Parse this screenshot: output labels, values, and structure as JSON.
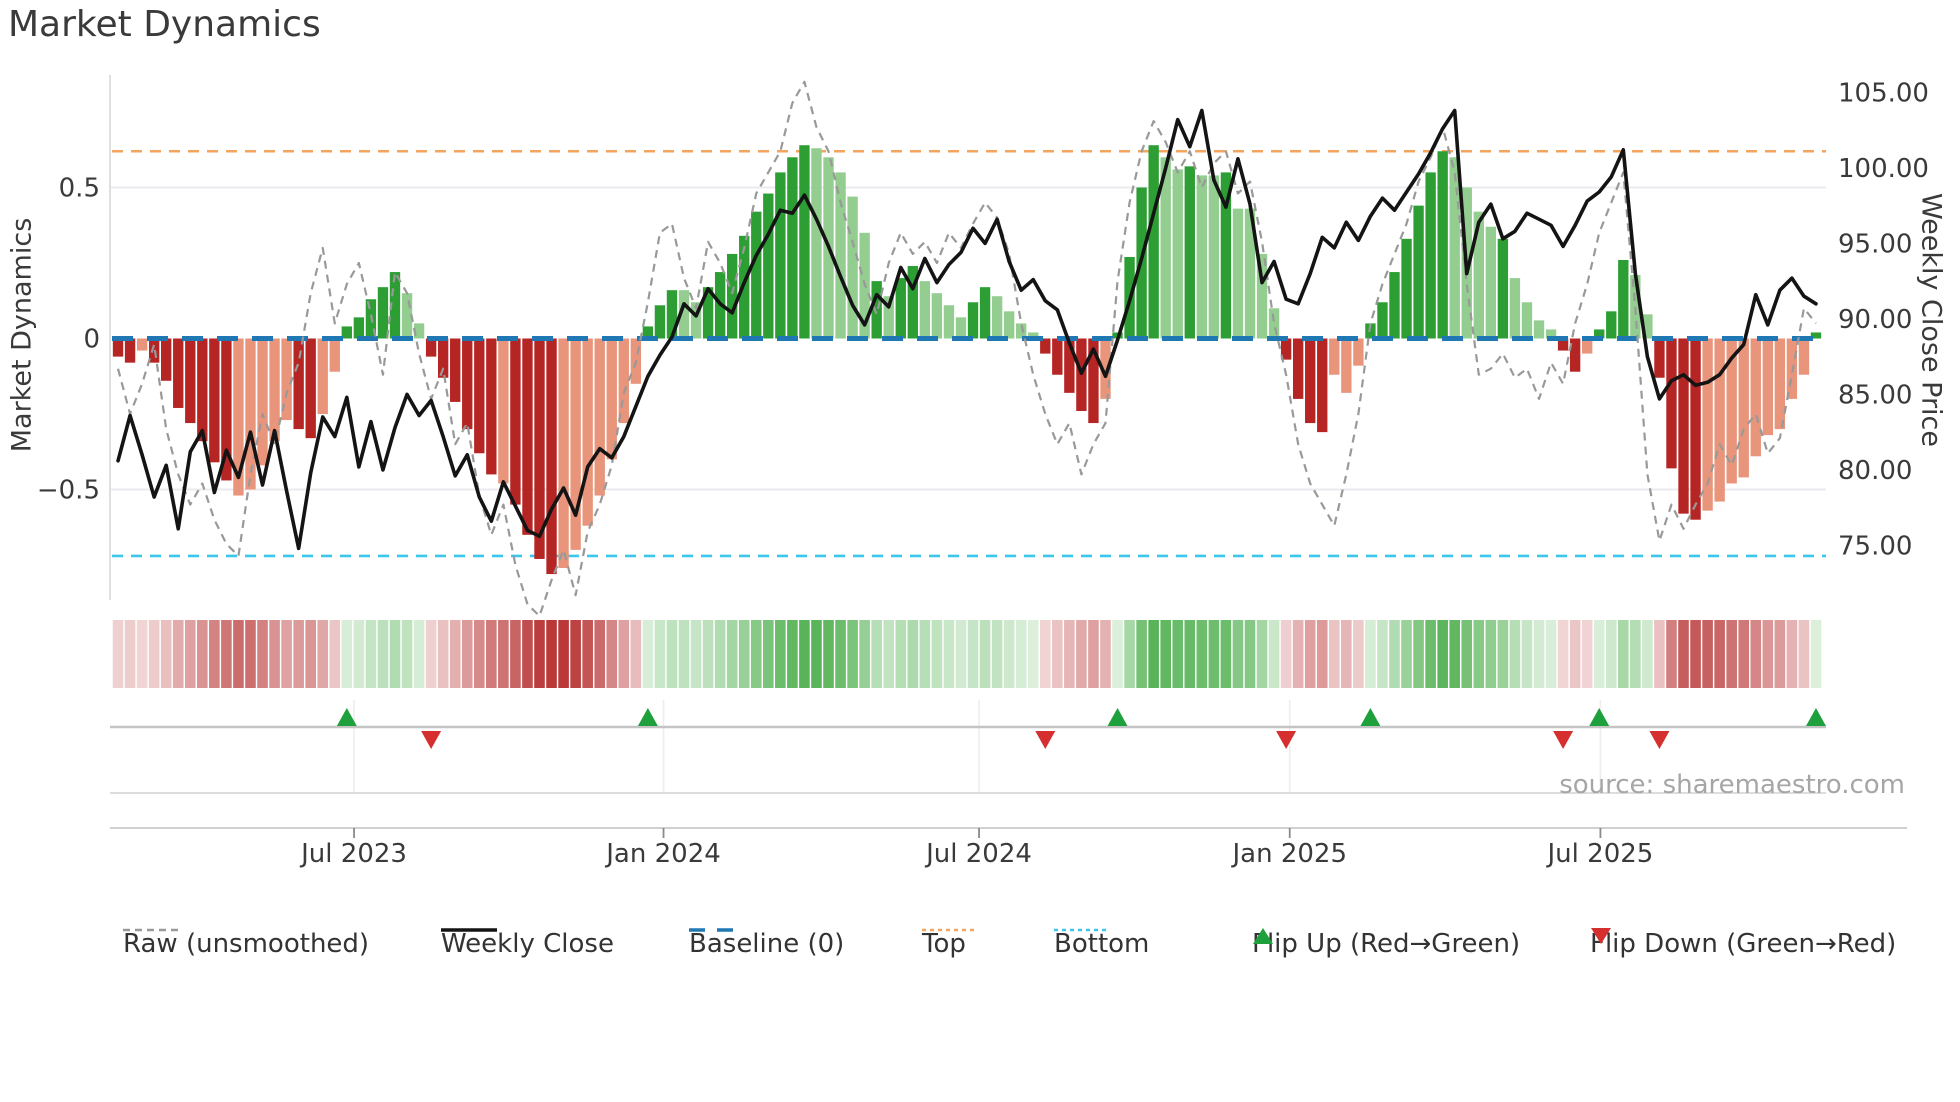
{
  "title": "Market Dynamics",
  "source_text": "source: sharemaestro.com",
  "left_axis": {
    "label": "Market Dynamics",
    "tick_labels": [
      "0.5",
      "0",
      "−0.5"
    ],
    "tick_values": [
      0.5,
      0,
      -0.5
    ]
  },
  "right_axis": {
    "label": "Weekly Close Price",
    "tick_labels": [
      "105.00",
      "100.00",
      "95.00",
      "90.00",
      "85.00",
      "80.00",
      "75.00"
    ],
    "tick_values": [
      105,
      100,
      95,
      90,
      85,
      80,
      75
    ]
  },
  "legend": {
    "items": [
      {
        "label": "Raw (unsmoothed)",
        "sample": "dashed-gray-line"
      },
      {
        "label": "Weekly Close",
        "sample": "solid-black-line"
      },
      {
        "label": "Baseline (0)",
        "sample": "dashed-blue-line"
      },
      {
        "label": "Top",
        "sample": "dotted-orange-line"
      },
      {
        "label": "Bottom",
        "sample": "dotted-cyan-line"
      },
      {
        "label": "Flip Up (Red→Green)",
        "sample": "up-triangle"
      },
      {
        "label": "Flip Down (Green→Red)",
        "sample": "down-triangle"
      }
    ]
  },
  "palette": {
    "bar_strong_red": "#b52524",
    "bar_soft_red": "#e8957b",
    "bar_strong_green": "#2d9e34",
    "bar_soft_green": "#93cd90",
    "heat_red": "#b22222",
    "heat_green": "#2ca02c",
    "weekly_close": "#141414",
    "raw_line": "#999999",
    "baseline": "#1f77b4",
    "top_line": "#f4a55c",
    "bottom_line": "#3cc6ea",
    "flip_up": "#1ea03c",
    "flip_down": "#d62f2f",
    "grid": "#ebebef",
    "axis_text": "#3a3a3a",
    "spine": "#c9c9c9"
  },
  "chart_data": {
    "type": "bar",
    "subtype": "oscillator-bars + weekly-close-line + raw-dashed-line",
    "title": "Market Dynamics",
    "xlabel": "",
    "ylabel": "Market Dynamics",
    "ylabel_right": "Weekly Close Price",
    "x_tick_labels": [
      "Jul 2023",
      "Jan 2024",
      "Jul 2024",
      "Jan 2025",
      "Jul 2025"
    ],
    "x_tick_weeks": [
      20.1,
      45.8,
      72.0,
      97.8,
      123.6
    ],
    "n_weeks": 142,
    "osc_ylim": [
      -0.95,
      0.87
    ],
    "price_ylim": [
      73.5,
      105.5
    ],
    "baseline_value": 0,
    "top_value": 0.62,
    "bottom_value": -0.72,
    "grid_osc_values": [
      0.5,
      -0.5
    ],
    "legend_position": "bottom",
    "series": [
      {
        "name": "Oscillator (smoothed bars)",
        "type": "bar",
        "values": [
          -0.06,
          -0.08,
          -0.04,
          -0.08,
          -0.14,
          -0.23,
          -0.28,
          -0.34,
          -0.41,
          -0.47,
          -0.52,
          -0.5,
          -0.42,
          -0.34,
          -0.27,
          -0.3,
          -0.33,
          -0.25,
          -0.11,
          0.04,
          0.07,
          0.13,
          0.17,
          0.22,
          0.15,
          0.05,
          -0.06,
          -0.13,
          -0.21,
          -0.3,
          -0.38,
          -0.45,
          -0.48,
          -0.55,
          -0.65,
          -0.73,
          -0.78,
          -0.76,
          -0.7,
          -0.62,
          -0.52,
          -0.4,
          -0.28,
          -0.15,
          0.04,
          0.11,
          0.16,
          0.16,
          0.12,
          0.17,
          0.22,
          0.28,
          0.34,
          0.42,
          0.48,
          0.55,
          0.6,
          0.64,
          0.63,
          0.6,
          0.55,
          0.47,
          0.35,
          0.19,
          0.14,
          0.2,
          0.24,
          0.19,
          0.15,
          0.11,
          0.07,
          0.12,
          0.17,
          0.14,
          0.09,
          0.05,
          0.02,
          -0.05,
          -0.12,
          -0.18,
          -0.24,
          -0.28,
          -0.2,
          0.02,
          0.27,
          0.5,
          0.64,
          0.6,
          0.56,
          0.57,
          0.54,
          0.54,
          0.55,
          0.43,
          0.43,
          0.28,
          0.1,
          -0.07,
          -0.2,
          -0.28,
          -0.31,
          -0.12,
          -0.18,
          -0.09,
          0.05,
          0.12,
          0.22,
          0.33,
          0.44,
          0.55,
          0.62,
          0.6,
          0.5,
          0.42,
          0.37,
          0.33,
          0.2,
          0.12,
          0.06,
          0.03,
          -0.04,
          -0.11,
          -0.05,
          0.03,
          0.09,
          0.26,
          0.21,
          0.08,
          -0.13,
          -0.43,
          -0.58,
          -0.6,
          -0.57,
          -0.54,
          -0.48,
          -0.46,
          -0.39,
          -0.32,
          -0.3,
          -0.2,
          -0.12,
          0.02
        ],
        "color_tokens": [
          "R",
          "R",
          "r",
          "R",
          "R",
          "R",
          "R",
          "R",
          "R",
          "R",
          "r",
          "r",
          "r",
          "r",
          "r",
          "R",
          "R",
          "r",
          "r",
          "G",
          "G",
          "G",
          "G",
          "G",
          "g",
          "g",
          "R",
          "R",
          "R",
          "R",
          "R",
          "R",
          "r",
          "R",
          "R",
          "R",
          "R",
          "r",
          "r",
          "r",
          "r",
          "r",
          "r",
          "r",
          "G",
          "G",
          "G",
          "g",
          "g",
          "G",
          "G",
          "G",
          "G",
          "G",
          "G",
          "G",
          "G",
          "G",
          "g",
          "g",
          "g",
          "g",
          "g",
          "G",
          "g",
          "G",
          "G",
          "g",
          "g",
          "g",
          "g",
          "G",
          "G",
          "g",
          "g",
          "g",
          "g",
          "R",
          "R",
          "R",
          "R",
          "R",
          "r",
          "G",
          "G",
          "G",
          "G",
          "g",
          "g",
          "G",
          "g",
          "g",
          "G",
          "g",
          "g",
          "g",
          "g",
          "R",
          "R",
          "R",
          "R",
          "r",
          "r",
          "r",
          "G",
          "G",
          "G",
          "G",
          "G",
          "G",
          "G",
          "g",
          "g",
          "g",
          "g",
          "G",
          "g",
          "g",
          "g",
          "g",
          "R",
          "R",
          "r",
          "G",
          "G",
          "G",
          "g",
          "g",
          "R",
          "R",
          "R",
          "R",
          "r",
          "r",
          "r",
          "r",
          "r",
          "r",
          "r",
          "r",
          "r",
          "G"
        ]
      },
      {
        "name": "Raw (unsmoothed)",
        "type": "line",
        "values": [
          -0.1,
          -0.25,
          -0.15,
          -0.02,
          -0.3,
          -0.45,
          -0.55,
          -0.48,
          -0.6,
          -0.68,
          -0.72,
          -0.45,
          -0.25,
          -0.35,
          -0.18,
          -0.08,
          0.15,
          0.3,
          0.05,
          0.18,
          0.25,
          0.08,
          -0.12,
          0.22,
          0.15,
          -0.05,
          -0.2,
          -0.1,
          -0.35,
          -0.28,
          -0.52,
          -0.65,
          -0.55,
          -0.75,
          -0.88,
          -0.92,
          -0.8,
          -0.7,
          -0.85,
          -0.64,
          -0.55,
          -0.42,
          -0.18,
          -0.08,
          0.12,
          0.35,
          0.38,
          0.2,
          0.1,
          0.32,
          0.25,
          0.15,
          0.3,
          0.48,
          0.55,
          0.62,
          0.78,
          0.85,
          0.7,
          0.62,
          0.45,
          0.32,
          0.18,
          0.08,
          0.25,
          0.35,
          0.28,
          0.32,
          0.25,
          0.35,
          0.3,
          0.38,
          0.45,
          0.4,
          0.28,
          0.05,
          -0.12,
          -0.25,
          -0.35,
          -0.28,
          -0.45,
          -0.35,
          -0.28,
          0.19,
          0.45,
          0.62,
          0.72,
          0.65,
          0.55,
          0.62,
          0.5,
          0.58,
          0.62,
          0.48,
          0.52,
          0.32,
          0.05,
          -0.12,
          -0.35,
          -0.48,
          -0.55,
          -0.62,
          -0.45,
          -0.25,
          0.05,
          0.18,
          0.28,
          0.38,
          0.52,
          0.6,
          0.7,
          0.55,
          0.18,
          -0.12,
          -0.1,
          -0.05,
          -0.13,
          -0.1,
          -0.2,
          -0.08,
          -0.15,
          0.05,
          0.18,
          0.35,
          0.45,
          0.55,
          0.1,
          -0.45,
          -0.67,
          -0.55,
          -0.63,
          -0.55,
          -0.48,
          -0.35,
          -0.42,
          -0.3,
          -0.25,
          -0.38,
          -0.33,
          -0.12,
          0.1,
          0.05
        ]
      },
      {
        "name": "Weekly Close",
        "type": "line",
        "axis": "right",
        "values": [
          80.6,
          83.6,
          81.0,
          78.2,
          80.3,
          76.1,
          81.2,
          82.6,
          78.5,
          81.3,
          79.5,
          82.5,
          79.0,
          82.6,
          78.6,
          74.8,
          79.8,
          83.5,
          82.2,
          84.8,
          80.2,
          83.2,
          80.0,
          82.8,
          85.0,
          83.6,
          84.6,
          82.2,
          79.6,
          81.0,
          78.2,
          76.6,
          79.2,
          77.6,
          76.0,
          75.6,
          77.4,
          78.8,
          77.0,
          80.2,
          81.4,
          80.8,
          82.2,
          84.2,
          86.2,
          87.6,
          88.8,
          91.0,
          90.2,
          92.0,
          91.0,
          90.4,
          92.4,
          94.2,
          95.6,
          97.2,
          97.0,
          98.2,
          96.6,
          94.8,
          92.8,
          90.9,
          89.6,
          91.6,
          90.8,
          93.4,
          92.0,
          94.0,
          92.4,
          93.6,
          94.4,
          96.0,
          95.0,
          96.6,
          93.8,
          91.9,
          92.6,
          91.2,
          90.6,
          88.4,
          86.4,
          88.0,
          86.2,
          88.6,
          91.2,
          94.0,
          97.0,
          100.0,
          103.2,
          101.4,
          103.8,
          99.2,
          97.4,
          100.6,
          97.6,
          92.4,
          93.8,
          91.3,
          91.0,
          93.0,
          95.4,
          94.7,
          96.4,
          95.2,
          96.8,
          98.0,
          97.2,
          98.4,
          99.6,
          101.0,
          102.6,
          103.8,
          93.0,
          96.4,
          97.6,
          95.3,
          95.8,
          97.0,
          96.6,
          96.2,
          94.8,
          96.2,
          97.8,
          98.4,
          99.4,
          101.2,
          93.0,
          87.5,
          84.7,
          85.9,
          86.3,
          85.6,
          85.8,
          86.3,
          87.4,
          88.3,
          91.6,
          89.6,
          91.9,
          92.7,
          91.5,
          91.0
        ]
      }
    ],
    "flip_up_weeks": [
      19,
      44,
      83,
      104,
      123,
      141
    ],
    "flip_down_weeks": [
      26,
      77,
      97,
      120,
      128
    ],
    "heatmap": {
      "note": "strip below main chart; cell tint = sign and magnitude of oscillator bar values"
    }
  }
}
